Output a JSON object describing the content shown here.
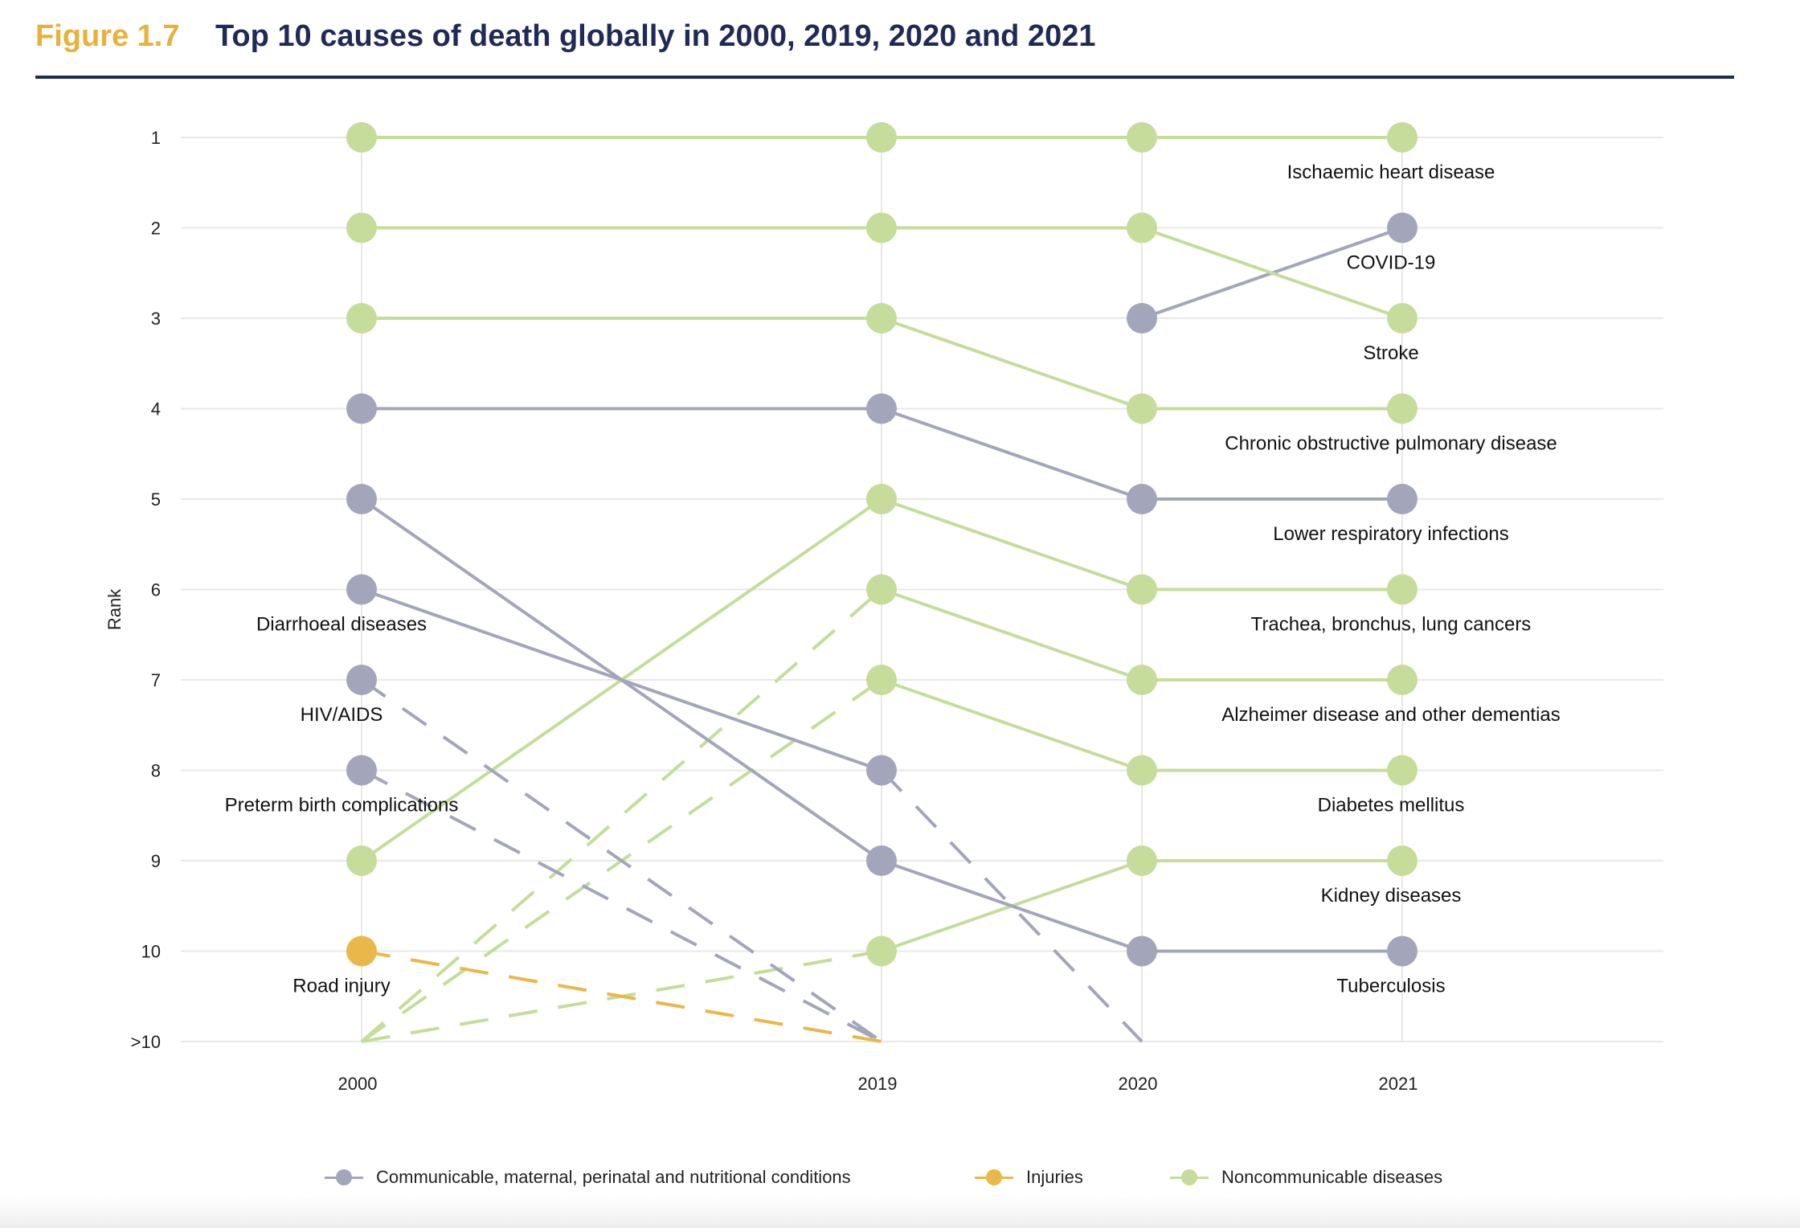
{
  "header": {
    "figure_label": "Figure 1.7",
    "title": "Top 10 causes of death globally in 2000, 2019, 2020 and 2021"
  },
  "colors": {
    "communicable": "#a3a6ba",
    "injuries": "#eab84a",
    "noncommunicable": "#c6dc9a",
    "grid": "#e8e8e8",
    "title": "#1f2a56",
    "figure_label": "#e8b23a"
  },
  "chart_data": {
    "type": "line",
    "subtype": "bump chart",
    "ylabel": "Rank",
    "x": [
      "2000",
      "2019",
      "2020",
      "2021"
    ],
    "y_ticks": [
      "1",
      "2",
      "3",
      "4",
      "5",
      "6",
      "7",
      "8",
      "9",
      "10",
      ">10"
    ],
    "y_reversed": true,
    "grid": true,
    "legend_position": "bottom",
    "note": "Rank 11 denotes >10; segments to or from >10 are dashed",
    "series": [
      {
        "name": "Ischaemic heart disease",
        "group": "noncommunicable",
        "ranks": [
          1,
          1,
          1,
          1
        ]
      },
      {
        "name": "COVID-19",
        "group": "communicable",
        "ranks": [
          null,
          null,
          3,
          2
        ]
      },
      {
        "name": "Stroke",
        "group": "noncommunicable",
        "ranks": [
          2,
          2,
          2,
          3
        ]
      },
      {
        "name": "Chronic obstructive pulmonary disease",
        "group": "noncommunicable",
        "ranks": [
          3,
          3,
          4,
          4
        ]
      },
      {
        "name": "Lower respiratory infections",
        "group": "communicable",
        "ranks": [
          4,
          4,
          5,
          5
        ]
      },
      {
        "name": "Trachea, bronchus, lung cancers",
        "group": "noncommunicable",
        "ranks": [
          9,
          5,
          6,
          6
        ]
      },
      {
        "name": "Alzheimer disease and other dementias",
        "group": "noncommunicable",
        "ranks": [
          11,
          6,
          7,
          7
        ]
      },
      {
        "name": "Diabetes mellitus",
        "group": "noncommunicable",
        "ranks": [
          11,
          7,
          8,
          8
        ]
      },
      {
        "name": "Kidney diseases",
        "group": "noncommunicable",
        "ranks": [
          11,
          10,
          9,
          9
        ]
      },
      {
        "name": "Tuberculosis",
        "group": "communicable",
        "ranks": [
          5,
          9,
          10,
          10
        ]
      },
      {
        "name": "Diarrhoeal diseases",
        "group": "communicable",
        "ranks": [
          6,
          8,
          11,
          null
        ]
      },
      {
        "name": "HIV/AIDS",
        "group": "communicable",
        "ranks": [
          7,
          11,
          null,
          null
        ]
      },
      {
        "name": "Preterm birth complications",
        "group": "communicable",
        "ranks": [
          8,
          11,
          null,
          null
        ]
      },
      {
        "name": "Road injury",
        "group": "injuries",
        "ranks": [
          10,
          11,
          null,
          null
        ]
      }
    ],
    "point_labels": [
      {
        "text": "Ischaemic heart disease",
        "year_index": 3,
        "rank": 1
      },
      {
        "text": "COVID-19",
        "year_index": 3,
        "rank": 2
      },
      {
        "text": "Stroke",
        "year_index": 3,
        "rank": 3
      },
      {
        "text": "Chronic obstructive pulmonary disease",
        "year_index": 3,
        "rank": 4
      },
      {
        "text": "Lower respiratory infections",
        "year_index": 3,
        "rank": 5
      },
      {
        "text": "Trachea, bronchus, lung cancers",
        "year_index": 3,
        "rank": 6
      },
      {
        "text": "Alzheimer disease and other dementias",
        "year_index": 3,
        "rank": 7
      },
      {
        "text": "Diabetes mellitus",
        "year_index": 3,
        "rank": 8
      },
      {
        "text": "Kidney diseases",
        "year_index": 3,
        "rank": 9
      },
      {
        "text": "Tuberculosis",
        "year_index": 3,
        "rank": 10
      },
      {
        "text": "Diarrhoeal diseases",
        "year_index": 0,
        "rank": 6
      },
      {
        "text": "HIV/AIDS",
        "year_index": 0,
        "rank": 7
      },
      {
        "text": "Preterm birth complications",
        "year_index": 0,
        "rank": 8
      },
      {
        "text": "Road injury",
        "year_index": 0,
        "rank": 10
      }
    ]
  },
  "legend": [
    {
      "key": "communicable",
      "label": "Communicable, maternal, perinatal and nutritional conditions"
    },
    {
      "key": "injuries",
      "label": "Injuries"
    },
    {
      "key": "noncommunicable",
      "label": "Noncommunicable diseases"
    }
  ]
}
